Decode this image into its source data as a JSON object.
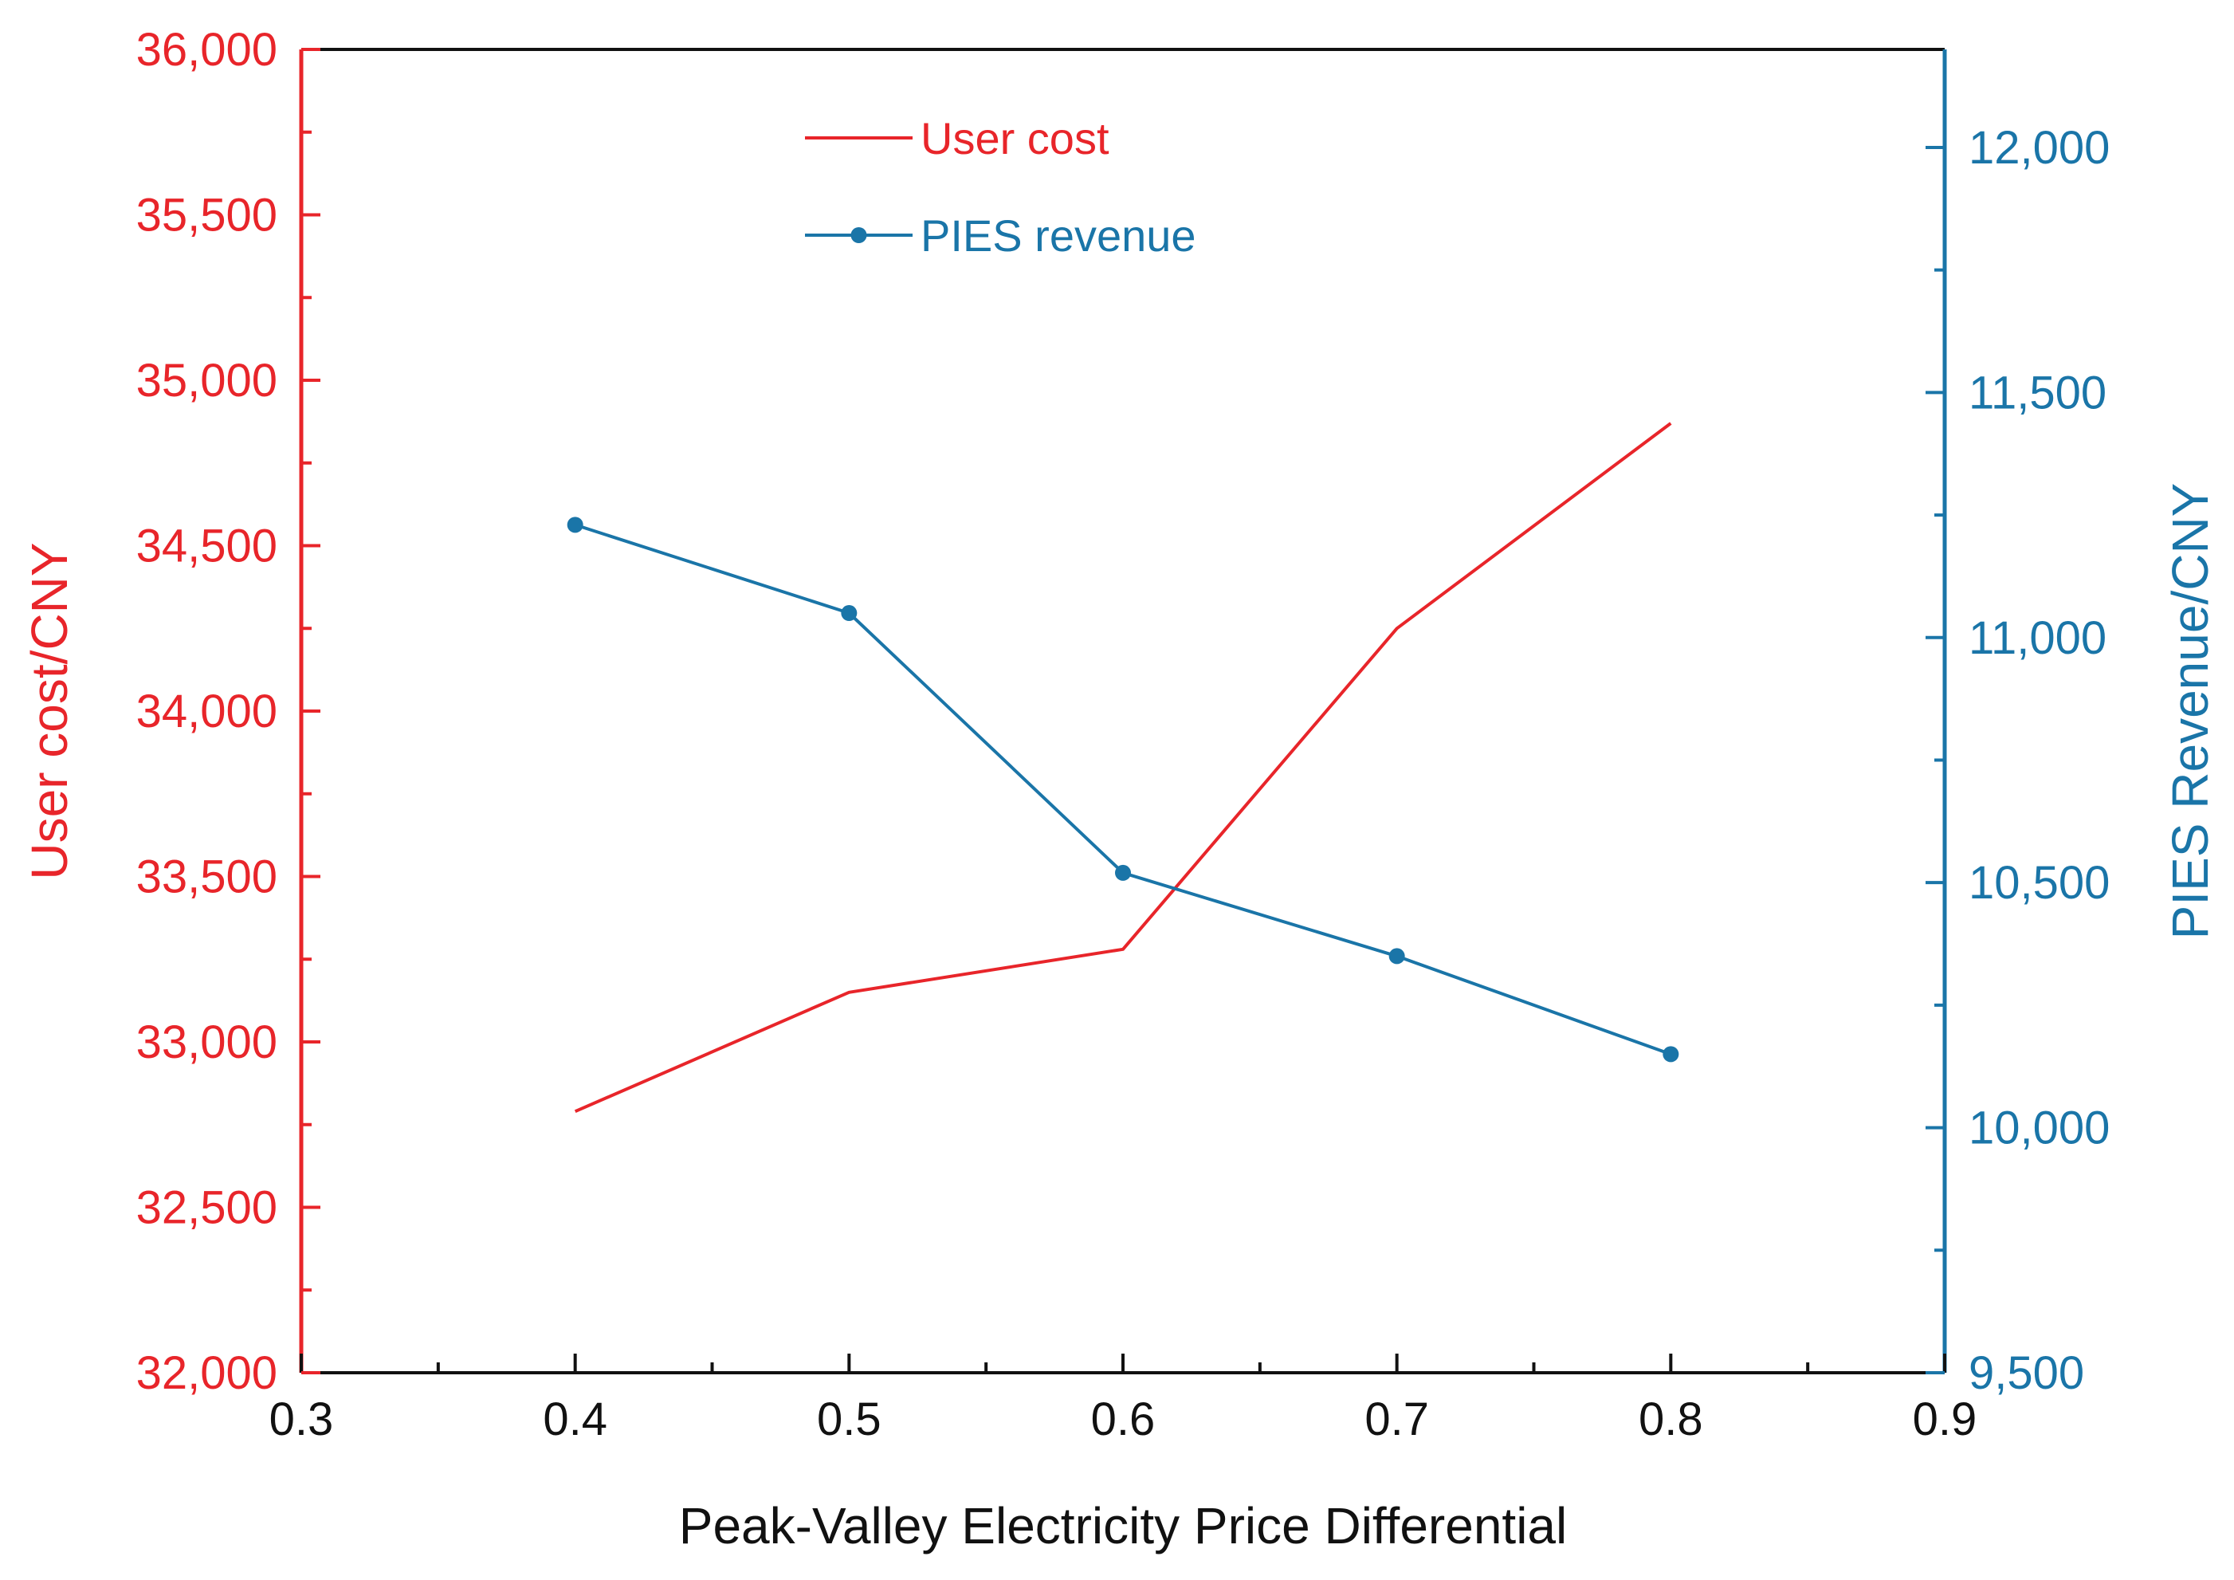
{
  "chart_data": {
    "type": "line",
    "xlabel": "Peak-Valley Electricity Price Differential",
    "ylabel_left": "User cost/CNY",
    "ylabel_right": "PIES Revenue/CNY",
    "xlim": [
      0.3,
      0.9
    ],
    "ylim_left": [
      32000,
      36000
    ],
    "ylim_right": [
      9500,
      12200
    ],
    "x_ticks": [
      0.3,
      0.4,
      0.5,
      0.6,
      0.7,
      0.8,
      0.9
    ],
    "x_tick_labels": [
      "0.3",
      "0.4",
      "0.5",
      "0.6",
      "0.7",
      "0.8",
      "0.9"
    ],
    "y_left_ticks": [
      32000,
      32500,
      33000,
      33500,
      34000,
      34500,
      35000,
      35500,
      36000
    ],
    "y_left_tick_labels": [
      "32,000",
      "32,500",
      "33,000",
      "33,500",
      "34,000",
      "34,500",
      "35,000",
      "35,500",
      "36,000"
    ],
    "y_right_ticks": [
      9500,
      10000,
      10500,
      11000,
      11500,
      12000
    ],
    "y_right_tick_labels": [
      "9,500",
      "10,000",
      "10,500",
      "11,000",
      "11,500",
      "12,000"
    ],
    "legend_position": "top-center",
    "grid": false,
    "series": [
      {
        "name": "User cost",
        "axis": "left",
        "color": "#e8252a",
        "marker": false,
        "x": [
          0.4,
          0.5,
          0.6,
          0.7,
          0.8
        ],
        "values": [
          32790,
          33150,
          33280,
          34250,
          34870
        ]
      },
      {
        "name": "PIES revenue",
        "axis": "right",
        "color": "#1a75a8",
        "marker": true,
        "x": [
          0.4,
          0.5,
          0.6,
          0.7,
          0.8
        ],
        "values": [
          11230,
          11050,
          10520,
          10350,
          10150
        ]
      }
    ],
    "colors": {
      "left_axis": "#e8252a",
      "right_axis": "#1a75a8",
      "frame": "#111111",
      "text": "#111111"
    }
  }
}
